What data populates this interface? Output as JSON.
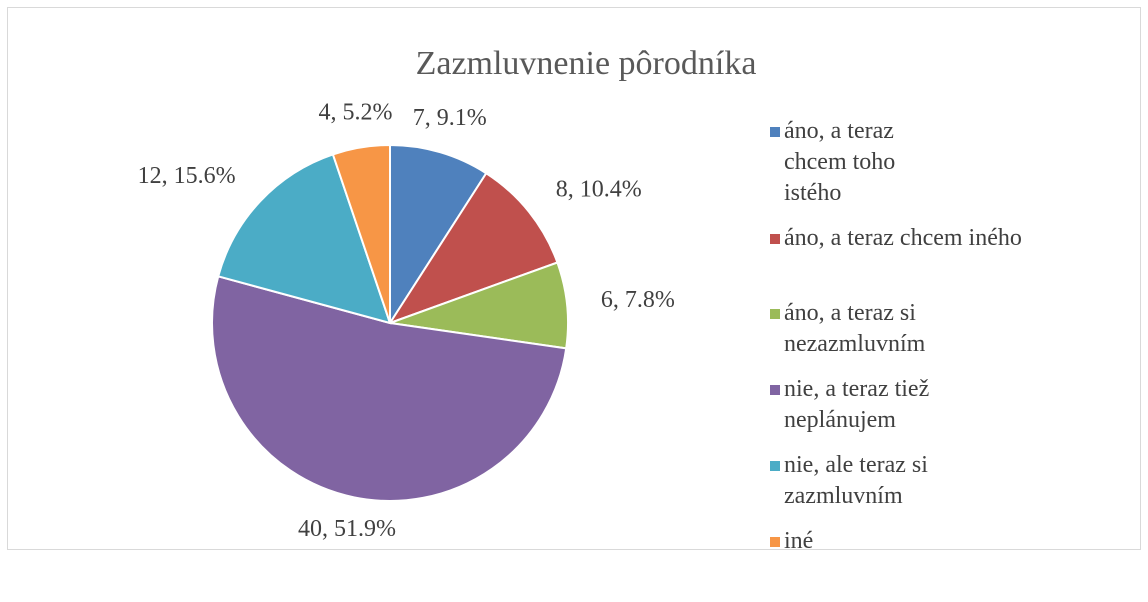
{
  "chart_data": {
    "type": "pie",
    "title": "Zazmluvnenie pôrodníka",
    "categories": [
      "áno, a teraz chcem toho istého",
      "áno, a teraz chcem iného",
      "áno, a teraz si nezazmluvním",
      "nie, a teraz tiež neplánujem",
      "nie, ale teraz si zazmluvním",
      "iné"
    ],
    "values": [
      7,
      8,
      6,
      40,
      12,
      4
    ],
    "value_labels": [
      "7, 9.1%",
      "8, 10.4%",
      "6, 7.8%",
      "40, 51.9%",
      "12, 15.6%",
      "4, 5.2%"
    ],
    "colors": [
      "#4f81bd",
      "#c0504d",
      "#9bbb59",
      "#8064a2",
      "#4bacc6",
      "#f79646"
    ],
    "legend": "right"
  }
}
